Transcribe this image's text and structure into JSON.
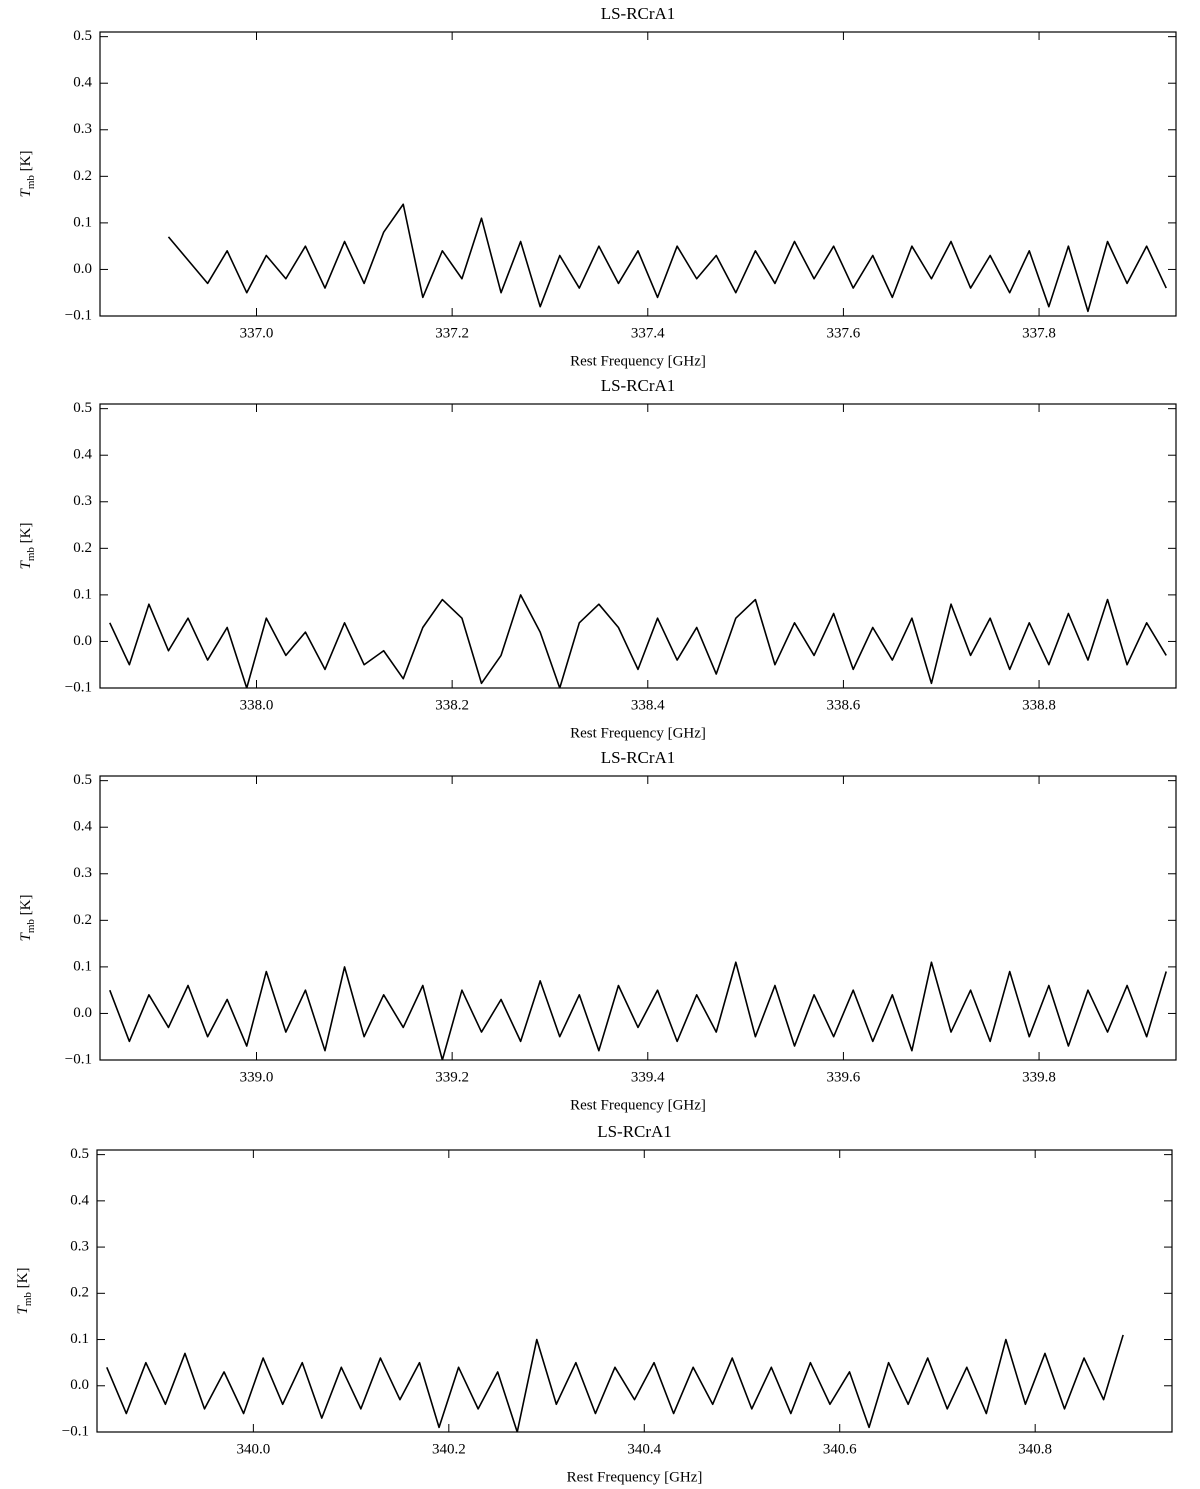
{
  "chart_data": [
    {
      "type": "line",
      "title": "LS-RCrA1",
      "xlabel": "Rest Frequency [GHz]",
      "ylabel_symbol": "T",
      "ylabel_subscript": "mb",
      "ylabel_unit": "[K]",
      "xlim": [
        336.84,
        337.94
      ],
      "ylim": [
        -0.1,
        0.51
      ],
      "xticks": [
        {
          "value": 337,
          "label": "337.0"
        },
        337.2,
        337.4,
        337.6,
        337.8
      ],
      "yticks": [
        {
          "value": -0.1,
          "label": "−0.1"
        },
        {
          "value": 0,
          "label": "0.0"
        },
        0.1,
        0.2,
        0.3,
        0.4,
        0.5
      ],
      "grid": false,
      "x": [
        336.91,
        336.93,
        336.95,
        336.97,
        336.99,
        337.01,
        337.03,
        337.05,
        337.07,
        337.09,
        337.11,
        337.13,
        337.15,
        337.17,
        337.19,
        337.21,
        337.23,
        337.25,
        337.27,
        337.29,
        337.31,
        337.33,
        337.35,
        337.37,
        337.39,
        337.41,
        337.43,
        337.45,
        337.47,
        337.49,
        337.51,
        337.53,
        337.55,
        337.57,
        337.59,
        337.61,
        337.63,
        337.65,
        337.67,
        337.69,
        337.71,
        337.73,
        337.75,
        337.77,
        337.79,
        337.81,
        337.83,
        337.85,
        337.87,
        337.89,
        337.91,
        337.93
      ],
      "series": [
        {
          "color": "#000000",
          "values": [
            0.07,
            0.02,
            -0.03,
            0.04,
            -0.05,
            0.03,
            -0.02,
            0.05,
            -0.04,
            0.06,
            -0.03,
            0.08,
            0.14,
            -0.06,
            0.04,
            -0.02,
            0.11,
            -0.05,
            0.06,
            -0.08,
            0.03,
            -0.04,
            0.05,
            -0.03,
            0.04,
            -0.06,
            0.05,
            -0.02,
            0.03,
            -0.05,
            0.04,
            -0.03,
            0.06,
            -0.02,
            0.05,
            -0.04,
            0.03,
            -0.06,
            0.05,
            -0.02,
            0.06,
            -0.04,
            0.03,
            -0.05,
            0.04,
            -0.08,
            0.05,
            -0.09,
            0.06,
            -0.03,
            0.05,
            -0.04
          ]
        }
      ]
    },
    {
      "type": "line",
      "title": "LS-RCrA1",
      "xlabel": "Rest Frequency [GHz]",
      "ylabel_symbol": "T",
      "ylabel_subscript": "mb",
      "ylabel_unit": "[K]",
      "xlim": [
        337.84,
        338.94
      ],
      "ylim": [
        -0.1,
        0.51
      ],
      "xticks": [
        {
          "value": 338,
          "label": "338.0"
        },
        338.2,
        338.4,
        338.6,
        338.8
      ],
      "yticks": [
        {
          "value": -0.1,
          "label": "−0.1"
        },
        {
          "value": 0,
          "label": "0.0"
        },
        0.1,
        0.2,
        0.3,
        0.4,
        0.5
      ],
      "grid": false,
      "x": [
        337.85,
        337.87,
        337.89,
        337.91,
        337.93,
        337.95,
        337.97,
        337.99,
        338.01,
        338.03,
        338.05,
        338.07,
        338.09,
        338.11,
        338.13,
        338.15,
        338.17,
        338.19,
        338.21,
        338.23,
        338.25,
        338.27,
        338.29,
        338.31,
        338.33,
        338.35,
        338.37,
        338.39,
        338.41,
        338.43,
        338.45,
        338.47,
        338.49,
        338.51,
        338.53,
        338.55,
        338.57,
        338.59,
        338.61,
        338.63,
        338.65,
        338.67,
        338.69,
        338.71,
        338.73,
        338.75,
        338.77,
        338.79,
        338.81,
        338.83,
        338.85,
        338.87,
        338.89,
        338.91,
        338.93
      ],
      "series": [
        {
          "color": "#000000",
          "values": [
            0.04,
            -0.05,
            0.08,
            -0.02,
            0.05,
            -0.04,
            0.03,
            -0.1,
            0.05,
            -0.03,
            0.02,
            -0.06,
            0.04,
            -0.05,
            -0.02,
            -0.08,
            0.03,
            0.09,
            0.05,
            -0.09,
            -0.03,
            0.1,
            0.02,
            -0.1,
            0.04,
            0.08,
            0.03,
            -0.06,
            0.05,
            -0.04,
            0.03,
            -0.07,
            0.05,
            0.09,
            -0.05,
            0.04,
            -0.03,
            0.06,
            -0.06,
            0.03,
            -0.04,
            0.05,
            -0.09,
            0.08,
            -0.03,
            0.05,
            -0.06,
            0.04,
            -0.05,
            0.06,
            -0.04,
            0.09,
            -0.05,
            0.04,
            -0.03
          ]
        }
      ]
    },
    {
      "type": "line",
      "title": "LS-RCrA1",
      "xlabel": "Rest Frequency [GHz]",
      "ylabel_symbol": "T",
      "ylabel_subscript": "mb",
      "ylabel_unit": "[K]",
      "xlim": [
        338.84,
        339.94
      ],
      "ylim": [
        -0.1,
        0.51
      ],
      "xticks": [
        {
          "value": 339,
          "label": "339.0"
        },
        339.2,
        339.4,
        339.6,
        339.8
      ],
      "yticks": [
        {
          "value": -0.1,
          "label": "−0.1"
        },
        {
          "value": 0,
          "label": "0.0"
        },
        0.1,
        0.2,
        0.3,
        0.4,
        0.5
      ],
      "grid": false,
      "x": [
        338.85,
        338.87,
        338.89,
        338.91,
        338.93,
        338.95,
        338.97,
        338.99,
        339.01,
        339.03,
        339.05,
        339.07,
        339.09,
        339.11,
        339.13,
        339.15,
        339.17,
        339.19,
        339.21,
        339.23,
        339.25,
        339.27,
        339.29,
        339.31,
        339.33,
        339.35,
        339.37,
        339.39,
        339.41,
        339.43,
        339.45,
        339.47,
        339.49,
        339.51,
        339.53,
        339.55,
        339.57,
        339.59,
        339.61,
        339.63,
        339.65,
        339.67,
        339.69,
        339.71,
        339.73,
        339.75,
        339.77,
        339.79,
        339.81,
        339.83,
        339.85,
        339.87,
        339.89,
        339.91,
        339.93
      ],
      "series": [
        {
          "color": "#000000",
          "values": [
            0.05,
            -0.06,
            0.04,
            -0.03,
            0.06,
            -0.05,
            0.03,
            -0.07,
            0.09,
            -0.04,
            0.05,
            -0.08,
            0.1,
            -0.05,
            0.04,
            -0.03,
            0.06,
            -0.1,
            0.05,
            -0.04,
            0.03,
            -0.06,
            0.07,
            -0.05,
            0.04,
            -0.08,
            0.06,
            -0.03,
            0.05,
            -0.06,
            0.04,
            -0.04,
            0.11,
            -0.05,
            0.06,
            -0.07,
            0.04,
            -0.05,
            0.05,
            -0.06,
            0.04,
            -0.08,
            0.11,
            -0.04,
            0.05,
            -0.06,
            0.09,
            -0.05,
            0.06,
            -0.07,
            0.05,
            -0.04,
            0.06,
            -0.05,
            0.09
          ]
        }
      ]
    },
    {
      "type": "line",
      "title": "LS-RCrA1",
      "xlabel": "Rest Frequency [GHz]",
      "ylabel_symbol": "T",
      "ylabel_subscript": "mb",
      "ylabel_unit": "[K]",
      "xlim": [
        339.84,
        340.94
      ],
      "ylim": [
        -0.1,
        0.51
      ],
      "xticks": [
        {
          "value": 340,
          "label": "340.0"
        },
        340.2,
        340.4,
        340.6,
        340.8
      ],
      "yticks": [
        {
          "value": -0.1,
          "label": "−0.1"
        },
        {
          "value": 0,
          "label": "0.0"
        },
        0.1,
        0.2,
        0.3,
        0.4,
        0.5
      ],
      "grid": false,
      "x": [
        339.85,
        339.87,
        339.89,
        339.91,
        339.93,
        339.95,
        339.97,
        339.99,
        340.01,
        340.03,
        340.05,
        340.07,
        340.09,
        340.11,
        340.13,
        340.15,
        340.17,
        340.19,
        340.21,
        340.23,
        340.25,
        340.27,
        340.29,
        340.31,
        340.33,
        340.35,
        340.37,
        340.39,
        340.41,
        340.43,
        340.45,
        340.47,
        340.49,
        340.51,
        340.53,
        340.55,
        340.57,
        340.59,
        340.61,
        340.63,
        340.65,
        340.67,
        340.69,
        340.71,
        340.73,
        340.75,
        340.77,
        340.79,
        340.81,
        340.83,
        340.85,
        340.87,
        340.89
      ],
      "series": [
        {
          "color": "#000000",
          "values": [
            0.04,
            -0.06,
            0.05,
            -0.04,
            0.07,
            -0.05,
            0.03,
            -0.06,
            0.06,
            -0.04,
            0.05,
            -0.07,
            0.04,
            -0.05,
            0.06,
            -0.03,
            0.05,
            -0.09,
            0.04,
            -0.05,
            0.03,
            -0.1,
            0.1,
            -0.04,
            0.05,
            -0.06,
            0.04,
            -0.03,
            0.05,
            -0.06,
            0.04,
            -0.04,
            0.06,
            -0.05,
            0.04,
            -0.06,
            0.05,
            -0.04,
            0.03,
            -0.09,
            0.05,
            -0.04,
            0.06,
            -0.05,
            0.04,
            -0.06,
            0.1,
            -0.04,
            0.07,
            -0.05,
            0.06,
            -0.03,
            0.11
          ]
        }
      ]
    }
  ]
}
